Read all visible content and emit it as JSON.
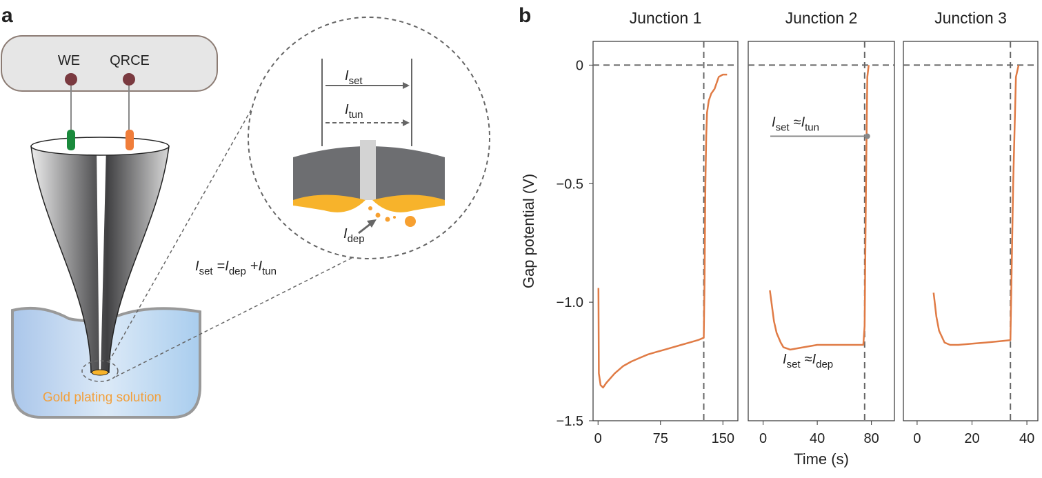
{
  "diagram": {
    "panel_label": "a",
    "we": "WE",
    "qrce": "QRCE",
    "solution": "Gold plating solution",
    "iset": [
      {
        "text": "I",
        "sub": "set"
      }
    ],
    "itun": [
      {
        "text": "I",
        "sub": "tun"
      }
    ],
    "idep": [
      {
        "text": "I",
        "sub": "dep"
      }
    ],
    "equation": [
      {
        "text": "I",
        "sub": "set"
      },
      {
        "text": "="
      },
      {
        "text": "I",
        "sub": "dep"
      },
      {
        "text": "+"
      },
      {
        "text": "I",
        "sub": "tun"
      }
    ]
  },
  "panel_b_label": "b",
  "chart_data": [
    {
      "type": "line",
      "title": "Junction 1",
      "ylabel": "Gap potential (V)",
      "color": "#e07b45",
      "x": [
        0.5,
        1,
        3,
        6,
        10,
        20,
        30,
        40,
        50,
        60,
        70,
        80,
        90,
        100,
        110,
        120,
        127,
        128,
        129,
        130,
        131,
        133,
        136,
        140,
        145,
        150,
        155
      ],
      "values": [
        -0.94,
        -1.3,
        -1.35,
        -1.36,
        -1.34,
        -1.3,
        -1.27,
        -1.25,
        -1.235,
        -1.22,
        -1.21,
        -1.2,
        -1.19,
        -1.18,
        -1.17,
        -1.16,
        -1.15,
        -0.9,
        -0.5,
        -0.3,
        -0.2,
        -0.15,
        -0.12,
        -0.1,
        -0.05,
        -0.04,
        -0.04
      ],
      "xlim": [
        -6,
        168
      ],
      "xticks": [
        0,
        75,
        150
      ],
      "ylim": [
        -1.5,
        0.1
      ],
      "yticks": [
        0,
        {
          "value": -0.5,
          "label": "−0.5"
        },
        {
          "value": -1,
          "label": "−1.0"
        },
        {
          "value": -1.5,
          "label": "−1.5"
        }
      ],
      "hline": 0,
      "vline": 127
    },
    {
      "type": "line",
      "title": "Junction 2",
      "xlabel": "Time (s)",
      "color": "#e07b45",
      "x": [
        5,
        8,
        10,
        13,
        15,
        20,
        30,
        40,
        50,
        60,
        70,
        74,
        75,
        76,
        77,
        78
      ],
      "values": [
        -0.95,
        -1.08,
        -1.13,
        -1.17,
        -1.19,
        -1.2,
        -1.19,
        -1.18,
        -1.18,
        -1.18,
        -1.18,
        -1.18,
        -1.1,
        -0.5,
        -0.05,
        0
      ],
      "xlim": [
        -11,
        97
      ],
      "xticks": [
        0,
        40,
        80
      ],
      "ylim": [
        -1.5,
        0.1
      ],
      "hline": 0,
      "vline": 75,
      "annotations": [
        {
          "parts": [
            {
              "text": "I",
              "sub": "set"
            },
            {
              "text": "≈"
            },
            {
              "text": "I",
              "sub": "tun"
            }
          ],
          "point": [
            77,
            -0.3
          ]
        },
        {
          "parts": [
            {
              "text": "I",
              "sub": "set"
            },
            {
              "text": "≈"
            },
            {
              "text": "I",
              "sub": "dep"
            }
          ]
        }
      ]
    },
    {
      "type": "line",
      "title": "Junction 3",
      "color": "#e07b45",
      "x": [
        6,
        7,
        8,
        10,
        12,
        15,
        20,
        25,
        30,
        34,
        35,
        36,
        37
      ],
      "values": [
        -0.96,
        -1.06,
        -1.12,
        -1.17,
        -1.18,
        -1.18,
        -1.175,
        -1.17,
        -1.165,
        -1.16,
        -0.5,
        -0.05,
        0
      ],
      "xlim": [
        -5,
        44
      ],
      "xticks": [
        0,
        20,
        40
      ],
      "ylim": [
        -1.5,
        0.1
      ],
      "hline": 0,
      "vline": 34
    }
  ]
}
